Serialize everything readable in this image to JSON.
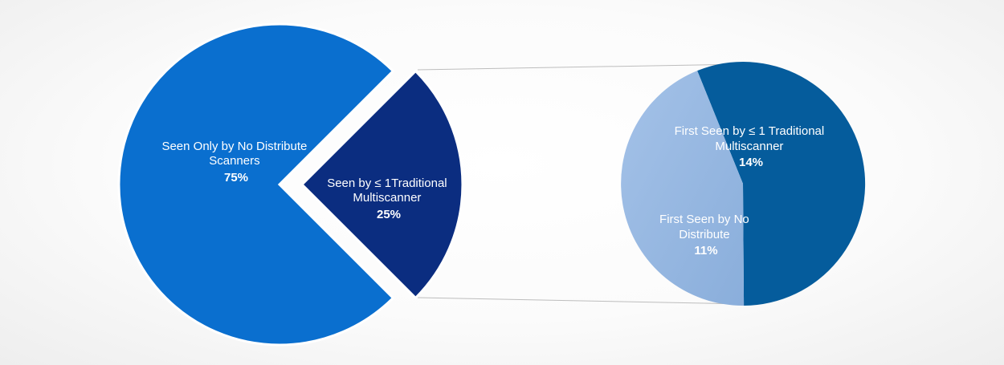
{
  "chart_data": [
    {
      "type": "pie",
      "slices": [
        {
          "label_lines": [
            "Seen Only by No Distribute",
            "Scanners"
          ],
          "value": 75,
          "value_label": "75%",
          "color": "#0a6fcf"
        },
        {
          "label_lines": [
            "Seen by ≤ 1Traditional",
            "Multiscanner"
          ],
          "value": 25,
          "value_label": "25%",
          "color": "#0b2d80"
        }
      ]
    },
    {
      "type": "pie",
      "slices": [
        {
          "label_lines": [
            "First Seen by ≤ 1 Traditional",
            "Multiscanner"
          ],
          "value": 14,
          "value_label": "14%",
          "color": "#055c9c"
        },
        {
          "label_lines": [
            "First Seen by No",
            "Distribute"
          ],
          "value": 11,
          "value_label": "11%",
          "color": "#9ab9e0"
        }
      ]
    }
  ],
  "colors": {
    "connector": "#bdbdbd",
    "slice_border": "#ffffff"
  }
}
